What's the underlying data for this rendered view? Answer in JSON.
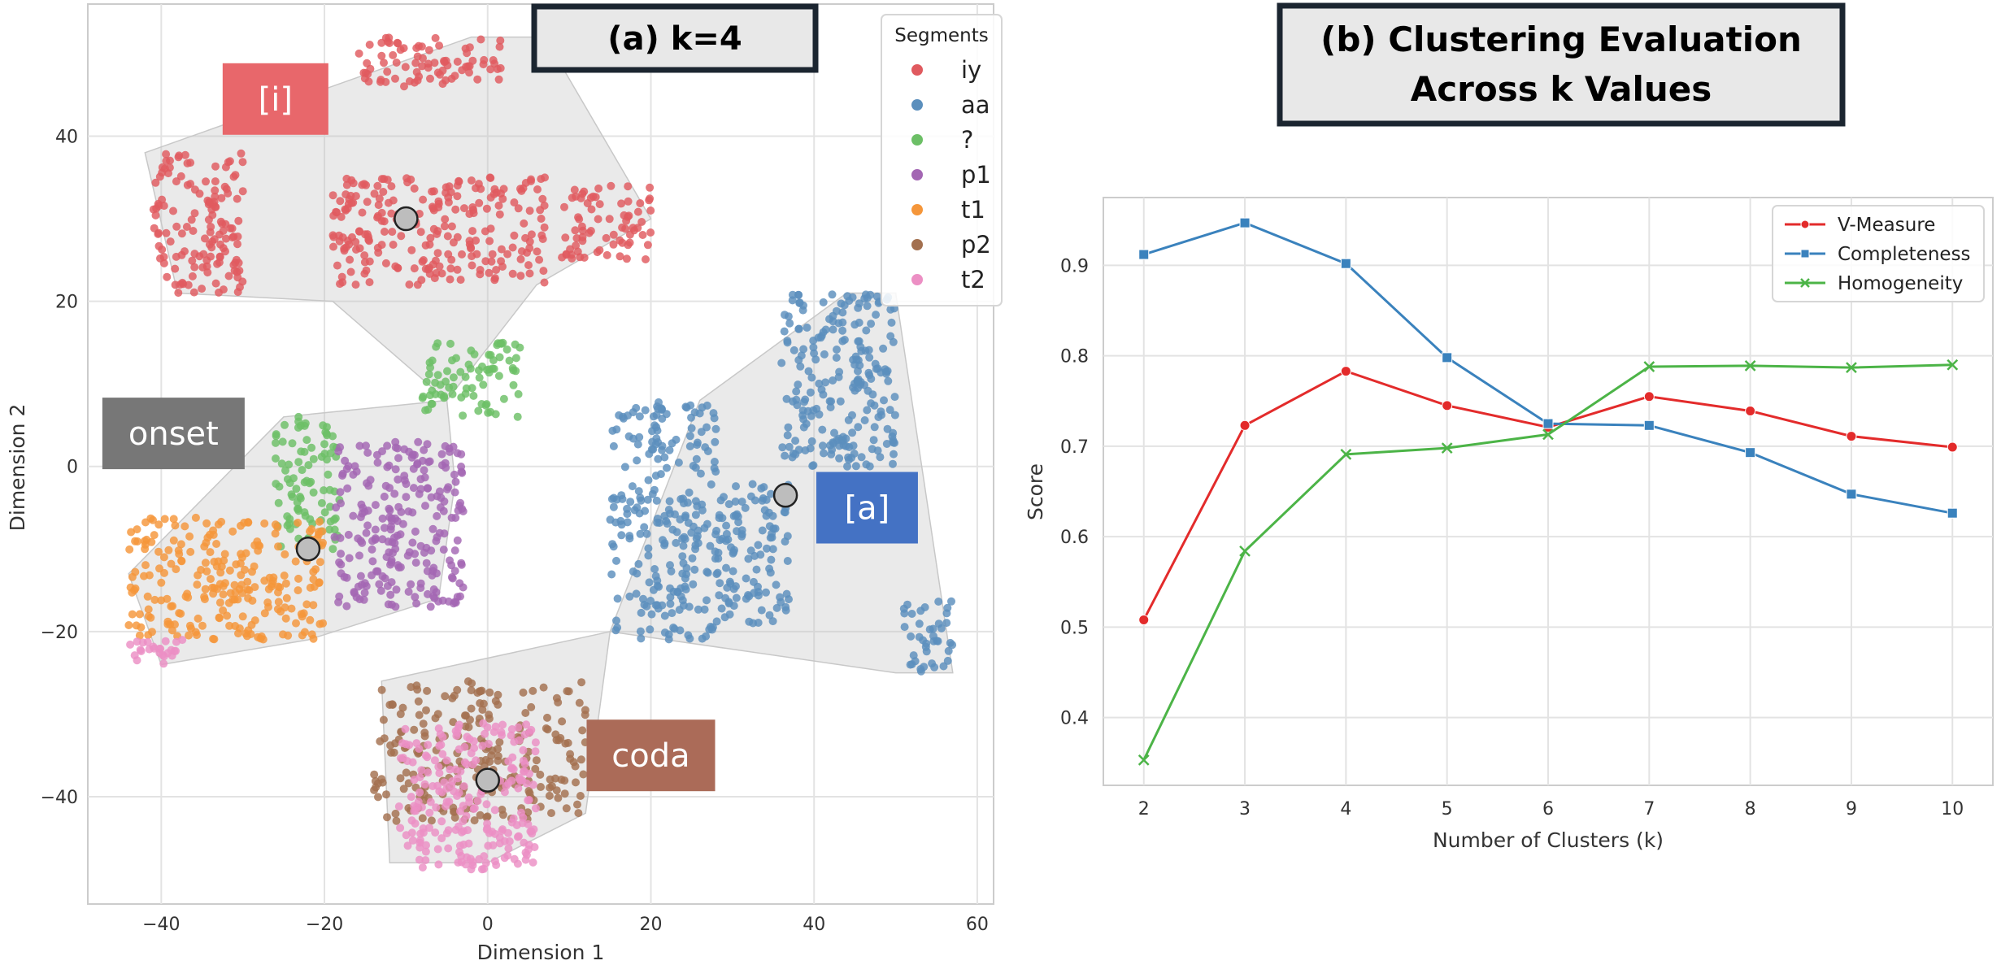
{
  "chart_data": [
    {
      "type": "scatter",
      "title": "(a) k=4",
      "xlabel": "Dimension 1",
      "ylabel": "Dimension 2",
      "xlim": [
        -49,
        62
      ],
      "ylim": [
        -53,
        56
      ],
      "xticks": [
        -40,
        -20,
        0,
        20,
        40,
        60
      ],
      "yticks": [
        -40,
        -20,
        0,
        20,
        40
      ],
      "xtick_labels": [
        "−40",
        "−20",
        "0",
        "20",
        "40",
        "60"
      ],
      "ytick_labels": [
        "−40",
        "−20",
        "0",
        "20",
        "40"
      ],
      "grid": true,
      "legend": {
        "title": "Segments",
        "position": "top-right",
        "items": [
          {
            "name": "iy",
            "color": "#e05a5f"
          },
          {
            "name": "aa",
            "color": "#5b8fbd"
          },
          {
            "name": "?",
            "color": "#6cbf66"
          },
          {
            "name": "p1",
            "color": "#a366b3"
          },
          {
            "name": "t1",
            "color": "#f5963a"
          },
          {
            "name": "p2",
            "color": "#a3704f"
          },
          {
            "name": "t2",
            "color": "#ec8fc4"
          }
        ]
      },
      "clusters": [
        {
          "name": "iy",
          "color": "#e05a5f",
          "regions": [
            {
              "x": [
                -41,
                -30
              ],
              "y": [
                21,
                38
              ]
            },
            {
              "x": [
                -19,
                7
              ],
              "y": [
                22,
                35
              ]
            },
            {
              "x": [
                -16,
                2
              ],
              "y": [
                46,
                52
              ]
            },
            {
              "x": [
                9,
                20
              ],
              "y": [
                25,
                34
              ]
            }
          ]
        },
        {
          "name": "aa",
          "color": "#5b8fbd",
          "regions": [
            {
              "x": [
                15,
                28
              ],
              "y": [
                -21,
                8
              ]
            },
            {
              "x": [
                28,
                37
              ],
              "y": [
                -19,
                -2
              ]
            },
            {
              "x": [
                36,
                50
              ],
              "y": [
                0,
                21
              ]
            },
            {
              "x": [
                51,
                57
              ],
              "y": [
                -25,
                -16
              ]
            }
          ]
        },
        {
          "name": "?",
          "color": "#6cbf66",
          "regions": [
            {
              "x": [
                -8,
                4
              ],
              "y": [
                6,
                15
              ]
            },
            {
              "x": [
                -26,
                -18
              ],
              "y": [
                -10,
                6
              ]
            }
          ]
        },
        {
          "name": "p1",
          "color": "#a366b3",
          "regions": [
            {
              "x": [
                -19,
                -3
              ],
              "y": [
                -17,
                3
              ]
            }
          ]
        },
        {
          "name": "t1",
          "color": "#f5963a",
          "regions": [
            {
              "x": [
                -44,
                -20
              ],
              "y": [
                -21,
                -6
              ]
            }
          ]
        },
        {
          "name": "p2",
          "color": "#a3704f",
          "regions": [
            {
              "x": [
                -14,
                12
              ],
              "y": [
                -43,
                -26
              ]
            }
          ]
        },
        {
          "name": "t2",
          "color": "#ec8fc4",
          "regions": [
            {
              "x": [
                -44,
                -37
              ],
              "y": [
                -24,
                -21
              ]
            },
            {
              "x": [
                -11,
                6
              ],
              "y": [
                -49,
                -31
              ]
            }
          ]
        }
      ],
      "centroids": [
        {
          "x": -10,
          "y": 30
        },
        {
          "x": -22,
          "y": -10
        },
        {
          "x": 36.5,
          "y": -3.5
        },
        {
          "x": 0,
          "y": -38
        }
      ],
      "hulls": [
        [
          [
            -42,
            38
          ],
          [
            -2,
            52
          ],
          [
            7,
            52
          ],
          [
            20,
            30
          ],
          [
            6,
            22
          ],
          [
            -5,
            8
          ],
          [
            -19,
            20
          ],
          [
            -38,
            21
          ]
        ],
        [
          [
            -44,
            -13
          ],
          [
            -25,
            6
          ],
          [
            -5,
            8
          ],
          [
            -4,
            -2
          ],
          [
            -6,
            -16
          ],
          [
            -22,
            -21
          ],
          [
            -40,
            -24
          ]
        ],
        [
          [
            15,
            -20
          ],
          [
            26,
            8
          ],
          [
            44,
            21
          ],
          [
            50,
            21
          ],
          [
            57,
            -25
          ],
          [
            50,
            -25
          ]
        ],
        [
          [
            -13,
            -26
          ],
          [
            15,
            -20
          ],
          [
            12,
            -42
          ],
          [
            0,
            -48
          ],
          [
            -12,
            -48
          ]
        ]
      ],
      "annotations": [
        {
          "text": "[i]",
          "x": -26,
          "y": 44.5,
          "color": "#e8676b"
        },
        {
          "text": "onset",
          "x": -38.5,
          "y": 4,
          "color": "#777777"
        },
        {
          "text": "[a]",
          "x": 46.5,
          "y": -5,
          "color": "#4472c4"
        },
        {
          "text": "coda",
          "x": 20,
          "y": -35,
          "color": "#ab6b58"
        }
      ]
    },
    {
      "type": "line",
      "title": "(b) Clustering Evaluation Across k Values",
      "title_lines": [
        "(b) Clustering Evaluation",
        "Across k Values"
      ],
      "xlabel": "Number of Clusters (k)",
      "ylabel": "Score",
      "x": [
        2,
        3,
        4,
        5,
        6,
        7,
        8,
        9,
        10
      ],
      "xlim": [
        1.6,
        10.4
      ],
      "ylim": [
        0.325,
        0.975
      ],
      "yticks": [
        0.4,
        0.5,
        0.6,
        0.7,
        0.8,
        0.9
      ],
      "ytick_labels": [
        "0.4",
        "0.5",
        "0.6",
        "0.7",
        "0.8",
        "0.9"
      ],
      "grid": true,
      "legend_position": "top-right",
      "series": [
        {
          "name": "V-Measure",
          "color": "#e32b2b",
          "marker": "circle",
          "values": [
            0.508,
            0.723,
            0.783,
            0.745,
            0.721,
            0.755,
            0.739,
            0.711,
            0.699
          ]
        },
        {
          "name": "Completeness",
          "color": "#3a82bd",
          "marker": "square",
          "values": [
            0.912,
            0.947,
            0.902,
            0.798,
            0.725,
            0.723,
            0.693,
            0.647,
            0.626
          ]
        },
        {
          "name": "Homogeneity",
          "color": "#4cb447",
          "marker": "x",
          "values": [
            0.353,
            0.584,
            0.691,
            0.698,
            0.713,
            0.788,
            0.789,
            0.787,
            0.79
          ]
        }
      ]
    }
  ]
}
